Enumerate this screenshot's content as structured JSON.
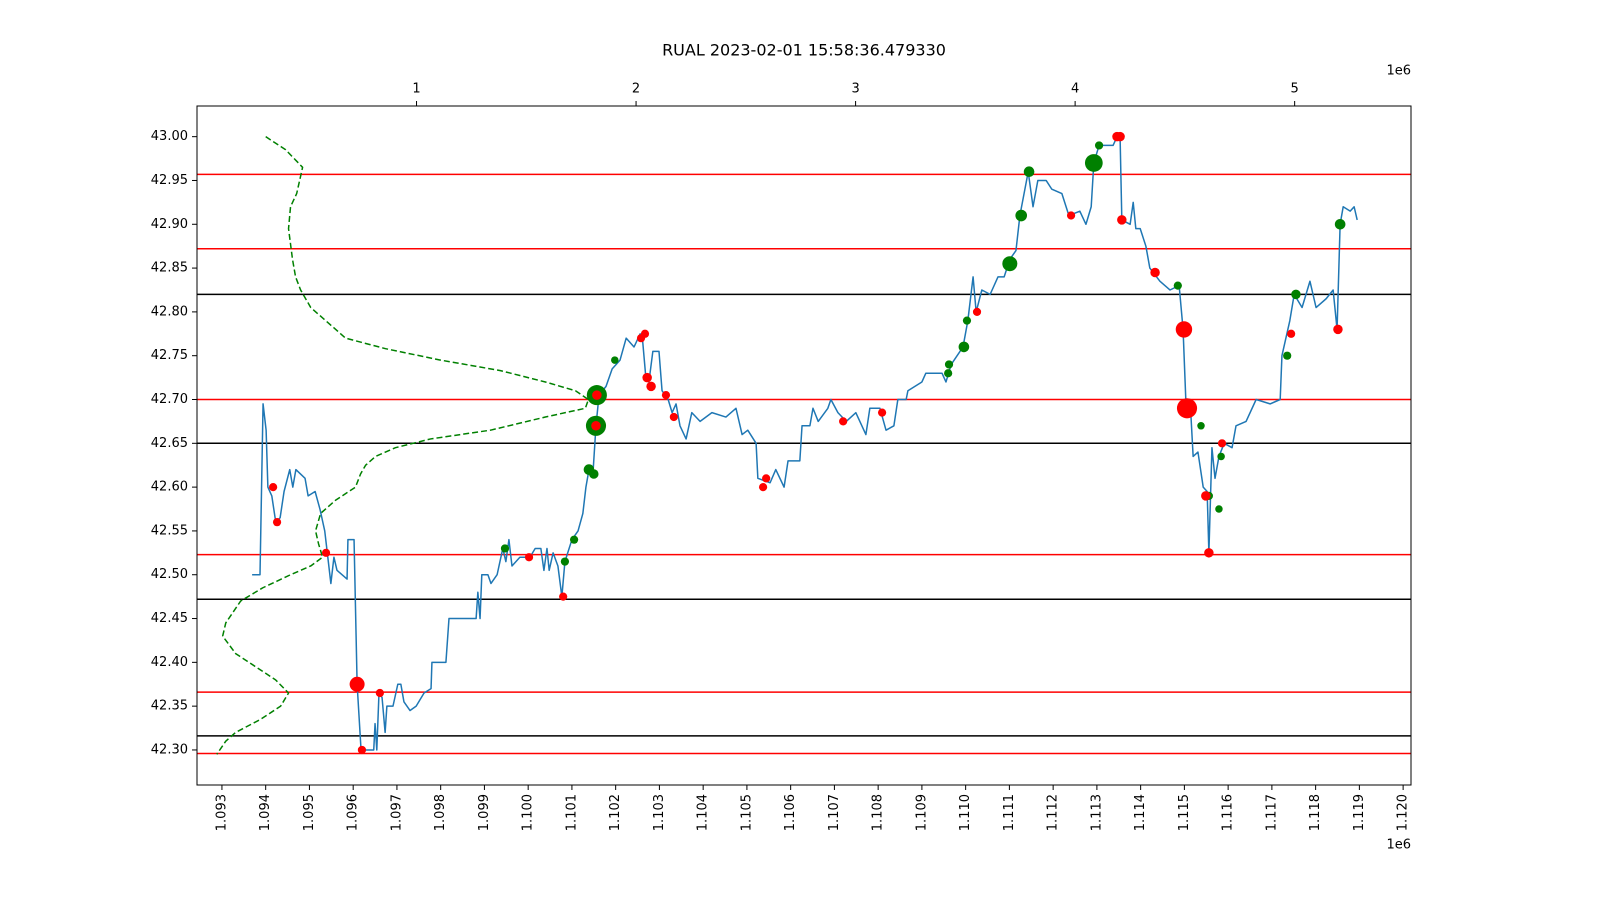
{
  "chart_data": {
    "type": "line",
    "title": "RUAL 2023-02-01 15:58:36.479330",
    "x_offset_label": "1e6",
    "x2_offset_label": "1e6",
    "xlim": [
      1.09243,
      1.12018
    ],
    "xticks": [
      {
        "value": 1.093,
        "label": "1.093"
      },
      {
        "value": 1.094,
        "label": "1.094"
      },
      {
        "value": 1.095,
        "label": "1.095"
      },
      {
        "value": 1.096,
        "label": "1.096"
      },
      {
        "value": 1.097,
        "label": "1.097"
      },
      {
        "value": 1.098,
        "label": "1.098"
      },
      {
        "value": 1.099,
        "label": "1.099"
      },
      {
        "value": 1.1,
        "label": "1.100"
      },
      {
        "value": 1.101,
        "label": "1.101"
      },
      {
        "value": 1.102,
        "label": "1.102"
      },
      {
        "value": 1.103,
        "label": "1.103"
      },
      {
        "value": 1.104,
        "label": "1.104"
      },
      {
        "value": 1.105,
        "label": "1.105"
      },
      {
        "value": 1.106,
        "label": "1.106"
      },
      {
        "value": 1.107,
        "label": "1.107"
      },
      {
        "value": 1.108,
        "label": "1.108"
      },
      {
        "value": 1.109,
        "label": "1.109"
      },
      {
        "value": 1.11,
        "label": "1.110"
      },
      {
        "value": 1.111,
        "label": "1.111"
      },
      {
        "value": 1.112,
        "label": "1.112"
      },
      {
        "value": 1.113,
        "label": "1.113"
      },
      {
        "value": 1.114,
        "label": "1.114"
      },
      {
        "value": 1.115,
        "label": "1.115"
      },
      {
        "value": 1.116,
        "label": "1.116"
      },
      {
        "value": 1.117,
        "label": "1.117"
      },
      {
        "value": 1.118,
        "label": "1.118"
      },
      {
        "value": 1.119,
        "label": "1.119"
      },
      {
        "value": 1.12,
        "label": "1.120"
      }
    ],
    "x2lim": [
      0,
      5.53
    ],
    "x2ticks": [
      1,
      2,
      3,
      4,
      5
    ],
    "ylim": [
      42.26,
      43.035
    ],
    "yticks": [
      {
        "value": 42.3,
        "label": "42.30"
      },
      42.35,
      {
        "value": 42.4,
        "label": "42.40"
      },
      42.45,
      {
        "value": 42.5,
        "label": "42.50"
      },
      42.55,
      {
        "value": 42.6,
        "label": "42.60"
      },
      42.65,
      {
        "value": 42.7,
        "label": "42.70"
      },
      42.75,
      {
        "value": 42.8,
        "label": "42.80"
      },
      42.85,
      {
        "value": 42.9,
        "label": "42.90"
      },
      42.95,
      {
        "value": 43,
        "label": "43.00"
      }
    ],
    "hlines": [
      {
        "value": 42.957,
        "color": "#ff0000"
      },
      {
        "value": 42.872,
        "color": "#ff0000"
      },
      {
        "value": 42.7,
        "color": "#ff0000"
      },
      {
        "value": 42.523,
        "color": "#ff0000"
      },
      {
        "value": 42.366,
        "color": "#ff0000"
      },
      {
        "value": 42.296,
        "color": "#ff0000"
      },
      {
        "value": 42.82,
        "color": "#000000"
      },
      {
        "value": 42.65,
        "color": "#000000"
      },
      {
        "value": 42.472,
        "color": "#000000"
      },
      {
        "value": 42.316,
        "color": "#000000"
      }
    ],
    "series": [
      {
        "type": "line",
        "axis": "x2",
        "color": "#008000",
        "linestyle": "dashed",
        "x": [
          0.313,
          0.404,
          0.481,
          0.454,
          0.426,
          0.417,
          0.435,
          0.449,
          0.472,
          0.518,
          0.609,
          0.677,
          0.859,
          1.109,
          1.382,
          1.587,
          1.724,
          1.783,
          1.769,
          1.587,
          1.337,
          1.064,
          0.904,
          0.813,
          0.768,
          0.745,
          0.722,
          0.631,
          0.563,
          0.54,
          0.554,
          0.572,
          0.518,
          0.426,
          0.299,
          0.199,
          0.131,
          0.117,
          0.176,
          0.267,
          0.358,
          0.417,
          0.381,
          0.29,
          0.176,
          0.131,
          0.09
        ],
        "values": [
          43.0,
          42.985,
          42.965,
          42.935,
          42.92,
          42.895,
          42.86,
          42.84,
          42.825,
          42.805,
          42.785,
          42.77,
          42.758,
          42.745,
          42.733,
          42.72,
          42.71,
          42.7,
          42.69,
          42.68,
          42.665,
          42.655,
          42.645,
          42.635,
          42.625,
          42.615,
          42.6,
          42.585,
          42.57,
          42.55,
          42.535,
          42.52,
          42.51,
          42.5,
          42.485,
          42.47,
          42.445,
          42.43,
          42.41,
          42.395,
          42.38,
          42.365,
          42.35,
          42.335,
          42.32,
          42.31,
          42.295
        ]
      },
      {
        "type": "line",
        "color": "#1f77b4",
        "x": [
          1.09369,
          1.09387,
          1.09394,
          1.09401,
          1.09405,
          1.09414,
          1.09423,
          1.09433,
          1.09442,
          1.09455,
          1.09462,
          1.09469,
          1.0949,
          1.09497,
          1.09513,
          1.09524,
          1.09535,
          1.09542,
          1.09549,
          1.09556,
          1.09563,
          1.09586,
          1.09588,
          1.09602,
          1.09609,
          1.09618,
          1.09647,
          1.0965,
          1.09654,
          1.09659,
          1.09666,
          1.09673,
          1.09677,
          1.09691,
          1.09702,
          1.09709,
          1.09716,
          1.0973,
          1.09744,
          1.09762,
          1.09778,
          1.0978,
          1.09812,
          1.09819,
          1.09881,
          1.09885,
          1.0989,
          1.09894,
          1.09908,
          1.09915,
          1.09929,
          1.09942,
          1.09949,
          1.09956,
          1.09963,
          1.09981,
          1.10004,
          1.10016,
          1.10029,
          1.10036,
          1.10043,
          1.10048,
          1.10057,
          1.10068,
          1.10077,
          1.10084,
          1.101,
          1.10114,
          1.10125,
          1.10132,
          1.10139,
          1.10148,
          1.10155,
          1.10162,
          1.10178,
          1.10192,
          1.1021,
          1.10224,
          1.10242,
          1.10256,
          1.10262,
          1.10269,
          1.10276,
          1.10285,
          1.10299,
          1.10306,
          1.1032,
          1.10329,
          1.10338,
          1.10347,
          1.10361,
          1.10374,
          1.10393,
          1.1042,
          1.10452,
          1.10475,
          1.10489,
          1.10502,
          1.10521,
          1.10525,
          1.10553,
          1.10566,
          1.10585,
          1.10594,
          1.10621,
          1.10626,
          1.10644,
          1.10651,
          1.10663,
          1.10685,
          1.10692,
          1.10708,
          1.10727,
          1.10749,
          1.10772,
          1.10781,
          1.10804,
          1.10818,
          1.10836,
          1.10845,
          1.10864,
          1.10868,
          1.109,
          1.10909,
          1.10946,
          1.10955,
          1.10967,
          1.10994,
          1.11005,
          1.11017,
          1.11024,
          1.11037,
          1.11056,
          1.11074,
          1.11088,
          1.11101,
          1.11115,
          1.11124,
          1.11143,
          1.11154,
          1.11165,
          1.11184,
          1.11197,
          1.1122,
          1.11236,
          1.11261,
          1.11275,
          1.11287,
          1.11293,
          1.11305,
          1.11337,
          1.11346,
          1.11353,
          1.11357,
          1.11376,
          1.11383,
          1.11389,
          1.11399,
          1.11412,
          1.11421,
          1.11444,
          1.11467,
          1.11488,
          1.11497,
          1.11504,
          1.11513,
          1.1152,
          1.11531,
          1.11543,
          1.11552,
          1.11556,
          1.11563,
          1.1157,
          1.11579,
          1.11591,
          1.11609,
          1.11618,
          1.11641,
          1.11664,
          1.11696,
          1.11719,
          1.11723,
          1.11741,
          1.11751,
          1.11769,
          1.11787,
          1.11801,
          1.11824,
          1.1184,
          1.11849,
          1.11856,
          1.11863,
          1.11879,
          1.11888,
          1.11895
        ],
        "values": [
          42.5,
          42.5,
          42.695,
          42.665,
          42.6,
          42.59,
          42.56,
          42.565,
          42.595,
          42.62,
          42.6,
          42.62,
          42.61,
          42.59,
          42.595,
          42.575,
          42.55,
          42.52,
          42.49,
          42.52,
          42.505,
          42.495,
          42.54,
          42.54,
          42.375,
          42.3,
          42.3,
          42.33,
          42.3,
          42.365,
          42.36,
          42.32,
          42.35,
          42.35,
          42.375,
          42.375,
          42.355,
          42.345,
          42.35,
          42.365,
          42.37,
          42.4,
          42.4,
          42.45,
          42.45,
          42.48,
          42.45,
          42.5,
          42.5,
          42.49,
          42.5,
          42.53,
          42.515,
          42.54,
          42.51,
          42.52,
          42.52,
          42.53,
          42.53,
          42.505,
          42.53,
          42.505,
          42.525,
          42.51,
          42.475,
          42.515,
          42.54,
          42.55,
          42.57,
          42.6,
          42.62,
          42.615,
          42.67,
          42.705,
          42.715,
          42.735,
          42.745,
          42.77,
          42.76,
          42.775,
          42.765,
          42.725,
          42.72,
          42.755,
          42.755,
          42.71,
          42.7,
          42.685,
          42.695,
          42.67,
          42.655,
          42.685,
          42.675,
          42.685,
          42.68,
          42.69,
          42.66,
          42.665,
          42.65,
          42.61,
          42.605,
          42.62,
          42.6,
          42.63,
          42.63,
          42.67,
          42.67,
          42.69,
          42.675,
          42.69,
          42.7,
          42.685,
          42.675,
          42.685,
          42.66,
          42.69,
          42.69,
          42.665,
          42.67,
          42.7,
          42.7,
          42.71,
          42.72,
          42.73,
          42.73,
          42.72,
          42.74,
          42.76,
          42.79,
          42.84,
          42.8,
          42.825,
          42.82,
          42.84,
          42.84,
          42.86,
          42.87,
          42.91,
          42.96,
          42.92,
          42.95,
          42.95,
          42.94,
          42.935,
          42.91,
          42.915,
          42.9,
          42.92,
          42.97,
          42.99,
          42.99,
          43.0,
          43.0,
          42.905,
          42.9,
          42.925,
          42.895,
          42.895,
          42.875,
          42.85,
          42.835,
          42.825,
          42.83,
          42.78,
          42.69,
          42.7,
          42.635,
          42.64,
          42.6,
          42.595,
          42.525,
          42.645,
          42.61,
          42.635,
          42.65,
          42.645,
          42.67,
          42.675,
          42.7,
          42.695,
          42.7,
          42.75,
          42.79,
          42.82,
          42.805,
          42.835,
          42.805,
          42.815,
          42.825,
          42.78,
          42.9,
          42.92,
          42.915,
          42.92,
          42.905
        ]
      },
      {
        "type": "scatter",
        "color": "#008000",
        "x": [
          1.09947,
          1.10084,
          1.10105,
          1.10139,
          1.1015,
          1.10157,
          1.10155,
          1.10198,
          1.1096,
          1.10962,
          1.10996,
          1.11003,
          1.11101,
          1.11127,
          1.11145,
          1.11293,
          1.11305,
          1.11485,
          1.11538,
          1.11556,
          1.11556,
          1.11579,
          1.11584,
          1.11735,
          1.11755,
          1.11856
        ],
        "values": [
          42.53,
          42.515,
          42.54,
          42.62,
          42.615,
          42.705,
          42.67,
          42.745,
          42.73,
          42.74,
          42.76,
          42.79,
          42.855,
          42.91,
          42.96,
          42.97,
          42.99,
          42.83,
          42.67,
          42.59,
          42.525,
          42.575,
          42.635,
          42.75,
          42.82,
          42.9
        ],
        "sizes": [
          30,
          30,
          30,
          50,
          40,
          180,
          180,
          25,
          30,
          30,
          50,
          30,
          100,
          60,
          50,
          140,
          30,
          30,
          25,
          30,
          30,
          25,
          25,
          30,
          40,
          50
        ]
      },
      {
        "type": "scatter",
        "color": "#ff0000",
        "x": [
          1.09417,
          1.09426,
          1.09538,
          1.09609,
          1.0962,
          1.09661,
          1.10002,
          1.1008,
          1.10157,
          1.10155,
          1.10258,
          1.10267,
          1.10272,
          1.10281,
          1.10315,
          1.10333,
          1.10537,
          1.10544,
          1.1072,
          1.10809,
          1.11026,
          1.11241,
          1.11346,
          1.11353,
          1.11357,
          1.11433,
          1.11499,
          1.11506,
          1.11549,
          1.11556,
          1.11586,
          1.11744,
          1.11851
        ],
        "values": [
          42.6,
          42.56,
          42.525,
          42.375,
          42.3,
          42.365,
          42.52,
          42.475,
          42.705,
          42.67,
          42.77,
          42.775,
          42.725,
          42.715,
          42.705,
          42.68,
          42.6,
          42.61,
          42.675,
          42.685,
          42.8,
          42.91,
          43.0,
          43.0,
          42.905,
          42.845,
          42.78,
          42.69,
          42.59,
          42.525,
          42.65,
          42.775,
          42.78
        ],
        "sizes": [
          30,
          30,
          30,
          100,
          30,
          30,
          30,
          30,
          40,
          40,
          30,
          30,
          40,
          40,
          30,
          30,
          30,
          30,
          30,
          30,
          30,
          30,
          40,
          40,
          40,
          40,
          120,
          180,
          40,
          40,
          30,
          30,
          40
        ]
      }
    ]
  }
}
